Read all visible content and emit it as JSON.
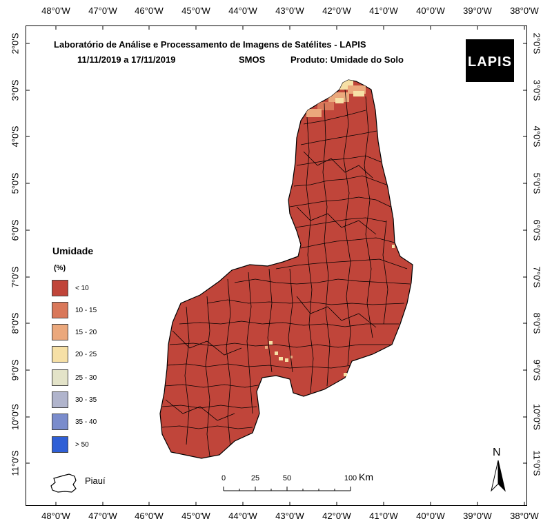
{
  "title": {
    "line1": "Laboratório de Análise e Processamento de Imagens de Satélites - LAPIS",
    "period": "11/11/2019  a  17/11/2019",
    "sensor": "SMOS",
    "product": "Produto: Umidade do Solo"
  },
  "logo": {
    "text": "LAPIS"
  },
  "longitude_ticks": [
    "48°0'W",
    "47°0'W",
    "46°0'W",
    "45°0'W",
    "44°0'W",
    "43°0'W",
    "42°0'W",
    "41°0'W",
    "40°0'W",
    "39°0'W",
    "38°0'W"
  ],
  "latitude_ticks": [
    "2°0'S",
    "3°0'S",
    "4°0'S",
    "5°0'S",
    "6°0'S",
    "7°0'S",
    "8°0'S",
    "9°0'S",
    "10°0'S",
    "11°0'S"
  ],
  "legend": {
    "title": "Umidade",
    "unit": "(%)",
    "items": [
      {
        "label": "< 10",
        "color": "#c0453a"
      },
      {
        "label": "10 - 15",
        "color": "#d9785a"
      },
      {
        "label": "15 - 20",
        "color": "#eba87c"
      },
      {
        "label": "20 - 25",
        "color": "#f6e0a6"
      },
      {
        "label": "25 - 30",
        "color": "#e3e3c8"
      },
      {
        "label": "30 - 35",
        "color": "#b0b4cc"
      },
      {
        "label": "35 - 40",
        "color": "#7a8ccc"
      },
      {
        "label": "> 50",
        "color": "#2f5fd6"
      }
    ]
  },
  "inset_label": "Piauí",
  "scale_bar": {
    "labels": [
      "0",
      "25",
      "50",
      "100"
    ],
    "unit": "Km"
  },
  "north_arrow": {
    "label": "N"
  },
  "map": {
    "state_fill": "#c0453a",
    "coast_color": "#f6e0a6",
    "coast_color_2": "#eba87c"
  }
}
